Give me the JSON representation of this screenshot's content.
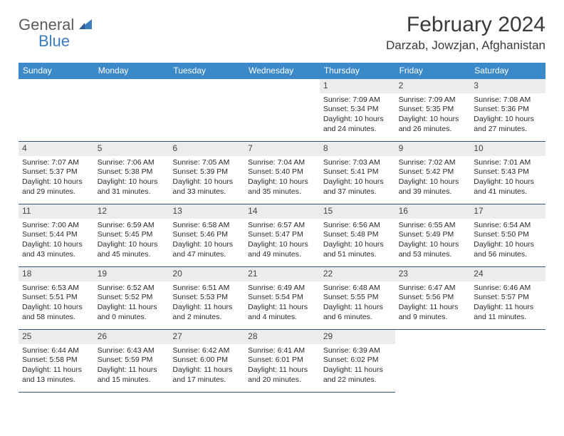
{
  "logo": {
    "text1": "General",
    "text2": "Blue"
  },
  "title": "February 2024",
  "location": "Darzab, Jowzjan, Afghanistan",
  "colors": {
    "header_bg": "#3b89c9",
    "header_fg": "#ffffff",
    "daynum_bg": "#ececec",
    "border": "#2b5a87",
    "logo_gray": "#5b5b5b",
    "logo_blue": "#3b7bbf"
  },
  "weekdays": [
    "Sunday",
    "Monday",
    "Tuesday",
    "Wednesday",
    "Thursday",
    "Friday",
    "Saturday"
  ],
  "leading_blanks": 4,
  "days": [
    {
      "n": 1,
      "sunrise": "7:09 AM",
      "sunset": "5:34 PM",
      "daylight": "10 hours and 24 minutes."
    },
    {
      "n": 2,
      "sunrise": "7:09 AM",
      "sunset": "5:35 PM",
      "daylight": "10 hours and 26 minutes."
    },
    {
      "n": 3,
      "sunrise": "7:08 AM",
      "sunset": "5:36 PM",
      "daylight": "10 hours and 27 minutes."
    },
    {
      "n": 4,
      "sunrise": "7:07 AM",
      "sunset": "5:37 PM",
      "daylight": "10 hours and 29 minutes."
    },
    {
      "n": 5,
      "sunrise": "7:06 AM",
      "sunset": "5:38 PM",
      "daylight": "10 hours and 31 minutes."
    },
    {
      "n": 6,
      "sunrise": "7:05 AM",
      "sunset": "5:39 PM",
      "daylight": "10 hours and 33 minutes."
    },
    {
      "n": 7,
      "sunrise": "7:04 AM",
      "sunset": "5:40 PM",
      "daylight": "10 hours and 35 minutes."
    },
    {
      "n": 8,
      "sunrise": "7:03 AM",
      "sunset": "5:41 PM",
      "daylight": "10 hours and 37 minutes."
    },
    {
      "n": 9,
      "sunrise": "7:02 AM",
      "sunset": "5:42 PM",
      "daylight": "10 hours and 39 minutes."
    },
    {
      "n": 10,
      "sunrise": "7:01 AM",
      "sunset": "5:43 PM",
      "daylight": "10 hours and 41 minutes."
    },
    {
      "n": 11,
      "sunrise": "7:00 AM",
      "sunset": "5:44 PM",
      "daylight": "10 hours and 43 minutes."
    },
    {
      "n": 12,
      "sunrise": "6:59 AM",
      "sunset": "5:45 PM",
      "daylight": "10 hours and 45 minutes."
    },
    {
      "n": 13,
      "sunrise": "6:58 AM",
      "sunset": "5:46 PM",
      "daylight": "10 hours and 47 minutes."
    },
    {
      "n": 14,
      "sunrise": "6:57 AM",
      "sunset": "5:47 PM",
      "daylight": "10 hours and 49 minutes."
    },
    {
      "n": 15,
      "sunrise": "6:56 AM",
      "sunset": "5:48 PM",
      "daylight": "10 hours and 51 minutes."
    },
    {
      "n": 16,
      "sunrise": "6:55 AM",
      "sunset": "5:49 PM",
      "daylight": "10 hours and 53 minutes."
    },
    {
      "n": 17,
      "sunrise": "6:54 AM",
      "sunset": "5:50 PM",
      "daylight": "10 hours and 56 minutes."
    },
    {
      "n": 18,
      "sunrise": "6:53 AM",
      "sunset": "5:51 PM",
      "daylight": "10 hours and 58 minutes."
    },
    {
      "n": 19,
      "sunrise": "6:52 AM",
      "sunset": "5:52 PM",
      "daylight": "11 hours and 0 minutes."
    },
    {
      "n": 20,
      "sunrise": "6:51 AM",
      "sunset": "5:53 PM",
      "daylight": "11 hours and 2 minutes."
    },
    {
      "n": 21,
      "sunrise": "6:49 AM",
      "sunset": "5:54 PM",
      "daylight": "11 hours and 4 minutes."
    },
    {
      "n": 22,
      "sunrise": "6:48 AM",
      "sunset": "5:55 PM",
      "daylight": "11 hours and 6 minutes."
    },
    {
      "n": 23,
      "sunrise": "6:47 AM",
      "sunset": "5:56 PM",
      "daylight": "11 hours and 9 minutes."
    },
    {
      "n": 24,
      "sunrise": "6:46 AM",
      "sunset": "5:57 PM",
      "daylight": "11 hours and 11 minutes."
    },
    {
      "n": 25,
      "sunrise": "6:44 AM",
      "sunset": "5:58 PM",
      "daylight": "11 hours and 13 minutes."
    },
    {
      "n": 26,
      "sunrise": "6:43 AM",
      "sunset": "5:59 PM",
      "daylight": "11 hours and 15 minutes."
    },
    {
      "n": 27,
      "sunrise": "6:42 AM",
      "sunset": "6:00 PM",
      "daylight": "11 hours and 17 minutes."
    },
    {
      "n": 28,
      "sunrise": "6:41 AM",
      "sunset": "6:01 PM",
      "daylight": "11 hours and 20 minutes."
    },
    {
      "n": 29,
      "sunrise": "6:39 AM",
      "sunset": "6:02 PM",
      "daylight": "11 hours and 22 minutes."
    }
  ],
  "labels": {
    "sunrise": "Sunrise: ",
    "sunset": "Sunset: ",
    "daylight": "Daylight: "
  }
}
